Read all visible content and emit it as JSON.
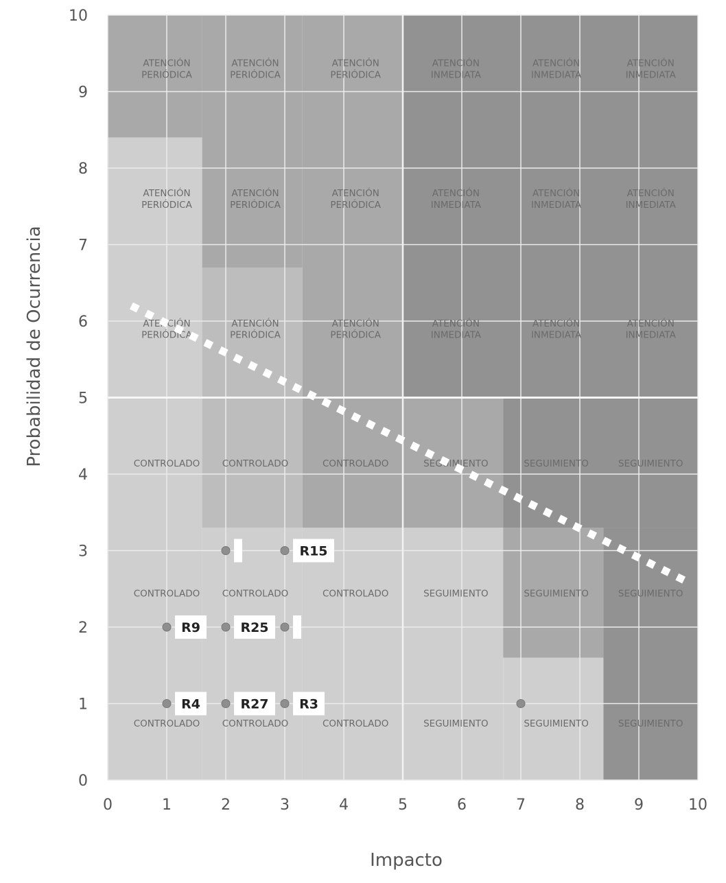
{
  "chart_data": {
    "type": "scatter",
    "title": "",
    "xlabel": "Impacto",
    "ylabel": "Probabilidad de Ocurrencia",
    "xlim": [
      0,
      10
    ],
    "ylim": [
      0,
      10
    ],
    "x_ticks": [
      "0",
      "1",
      "2",
      "3",
      "4",
      "5",
      "6",
      "7",
      "8",
      "9",
      "10"
    ],
    "y_ticks": [
      "0",
      "1",
      "2",
      "3",
      "4",
      "5",
      "6",
      "7",
      "8",
      "9",
      "10"
    ],
    "grid": true,
    "zones": [
      {
        "x": [
          0,
          1.6
        ],
        "y": [
          0,
          8.4
        ],
        "level": 0
      },
      {
        "x": [
          1.6,
          3.3
        ],
        "y": [
          3.3,
          6.7
        ],
        "level": 1
      },
      {
        "x": [
          1.6,
          3.3
        ],
        "y": [
          6.7,
          10
        ],
        "level": 2
      },
      {
        "x": [
          0,
          1.6
        ],
        "y": [
          8.4,
          10
        ],
        "level": 2
      },
      {
        "x": [
          1.6,
          3.3
        ],
        "y": [
          0,
          3.3
        ],
        "level": 0
      },
      {
        "x": [
          3.3,
          5
        ],
        "y": [
          0,
          3.3
        ],
        "level": 0
      },
      {
        "x": [
          3.3,
          5
        ],
        "y": [
          3.3,
          5
        ],
        "level": 2
      },
      {
        "x": [
          3.3,
          5
        ],
        "y": [
          5,
          10
        ],
        "level": 2
      },
      {
        "x": [
          5,
          6.7
        ],
        "y": [
          0,
          3.3
        ],
        "level": 0
      },
      {
        "x": [
          5,
          6.7
        ],
        "y": [
          3.3,
          5
        ],
        "level": 2
      },
      {
        "x": [
          5,
          10
        ],
        "y": [
          5,
          10
        ],
        "level": 3
      },
      {
        "x": [
          6.7,
          8.4
        ],
        "y": [
          0,
          1.6
        ],
        "level": 0
      },
      {
        "x": [
          6.7,
          8.4
        ],
        "y": [
          1.6,
          3.3
        ],
        "level": 2
      },
      {
        "x": [
          6.7,
          10
        ],
        "y": [
          3.3,
          5
        ],
        "level": 3
      },
      {
        "x": [
          8.4,
          10
        ],
        "y": [
          0,
          3.3
        ],
        "level": 3
      }
    ],
    "zone_labels": [
      {
        "x": 1,
        "y": 9.3,
        "text": "ATENCIÓN PERIÓDICA"
      },
      {
        "x": 2.5,
        "y": 9.3,
        "text": "ATENCIÓN PERIÓDICA"
      },
      {
        "x": 4.2,
        "y": 9.3,
        "text": "ATENCIÓN PERIÓDICA"
      },
      {
        "x": 5.9,
        "y": 9.3,
        "text": "ATENCIÓN INMEDIATA"
      },
      {
        "x": 7.6,
        "y": 9.3,
        "text": "ATENCIÓN INMEDIATA"
      },
      {
        "x": 9.2,
        "y": 9.3,
        "text": "ATENCIÓN INMEDIATA"
      },
      {
        "x": 1,
        "y": 7.6,
        "text": "ATENCIÓN PERIÓDICA"
      },
      {
        "x": 2.5,
        "y": 7.6,
        "text": "ATENCIÓN PERIÓDICA"
      },
      {
        "x": 4.2,
        "y": 7.6,
        "text": "ATENCIÓN PERIÓDICA"
      },
      {
        "x": 5.9,
        "y": 7.6,
        "text": "ATENCIÓN INMEDIATA"
      },
      {
        "x": 7.6,
        "y": 7.6,
        "text": "ATENCIÓN INMEDIATA"
      },
      {
        "x": 9.2,
        "y": 7.6,
        "text": "ATENCIÓN INMEDIATA"
      },
      {
        "x": 1,
        "y": 5.9,
        "text": "ATENCIÓN PERIÓDICA"
      },
      {
        "x": 2.5,
        "y": 5.9,
        "text": "ATENCIÓN PERIÓDICA"
      },
      {
        "x": 4.2,
        "y": 5.9,
        "text": "ATENCIÓN PERIÓDICA"
      },
      {
        "x": 5.9,
        "y": 5.9,
        "text": "ATENCIÓN INMEDIATA"
      },
      {
        "x": 7.6,
        "y": 5.9,
        "text": "ATENCIÓN INMEDIATA"
      },
      {
        "x": 9.2,
        "y": 5.9,
        "text": "ATENCIÓN INMEDIATA"
      },
      {
        "x": 1,
        "y": 4.1,
        "text": "CONTROLADO"
      },
      {
        "x": 2.5,
        "y": 4.1,
        "text": "CONTROLADO"
      },
      {
        "x": 4.2,
        "y": 4.1,
        "text": "CONTROLADO"
      },
      {
        "x": 5.9,
        "y": 4.1,
        "text": "SEGUIMIENTO"
      },
      {
        "x": 7.6,
        "y": 4.1,
        "text": "SEGUIMIENTO"
      },
      {
        "x": 9.2,
        "y": 4.1,
        "text": "SEGUIMIENTO"
      },
      {
        "x": 1,
        "y": 2.4,
        "text": "CONTROLADO"
      },
      {
        "x": 2.5,
        "y": 2.4,
        "text": "CONTROLADO"
      },
      {
        "x": 4.2,
        "y": 2.4,
        "text": "CONTROLADO"
      },
      {
        "x": 5.9,
        "y": 2.4,
        "text": "SEGUIMIENTO"
      },
      {
        "x": 7.6,
        "y": 2.4,
        "text": "SEGUIMIENTO"
      },
      {
        "x": 9.2,
        "y": 2.4,
        "text": "SEGUIMIENTO"
      },
      {
        "x": 1,
        "y": 0.7,
        "text": "CONTROLADO"
      },
      {
        "x": 2.5,
        "y": 0.7,
        "text": "CONTROLADO"
      },
      {
        "x": 4.2,
        "y": 0.7,
        "text": "CONTROLADO"
      },
      {
        "x": 5.9,
        "y": 0.7,
        "text": "SEGUIMIENTO"
      },
      {
        "x": 7.6,
        "y": 0.7,
        "text": "SEGUIMIENTO"
      },
      {
        "x": 9.2,
        "y": 0.7,
        "text": "SEGUIMIENTO"
      }
    ],
    "points": [
      {
        "x": 2,
        "y": 3,
        "label": ""
      },
      {
        "x": 3,
        "y": 3,
        "label": "R15"
      },
      {
        "x": 1,
        "y": 2,
        "label": "R9"
      },
      {
        "x": 2,
        "y": 2,
        "label": "R25"
      },
      {
        "x": 3,
        "y": 2,
        "label": ""
      },
      {
        "x": 1,
        "y": 1,
        "label": "R4"
      },
      {
        "x": 2,
        "y": 1,
        "label": "R27"
      },
      {
        "x": 3,
        "y": 1,
        "label": "R3"
      },
      {
        "x": 7,
        "y": 1,
        "label": ""
      }
    ],
    "threshold_line": {
      "x": [
        0.4,
        9.8
      ],
      "y": [
        6.2,
        2.6
      ]
    },
    "colors": {
      "zone_levels": [
        "#cfcfcf",
        "#bdbdbd",
        "#a9a9a9",
        "#929292"
      ],
      "grid": "#ebebeb",
      "marker": "#8e8e8e",
      "dash": "#ffffff"
    }
  }
}
